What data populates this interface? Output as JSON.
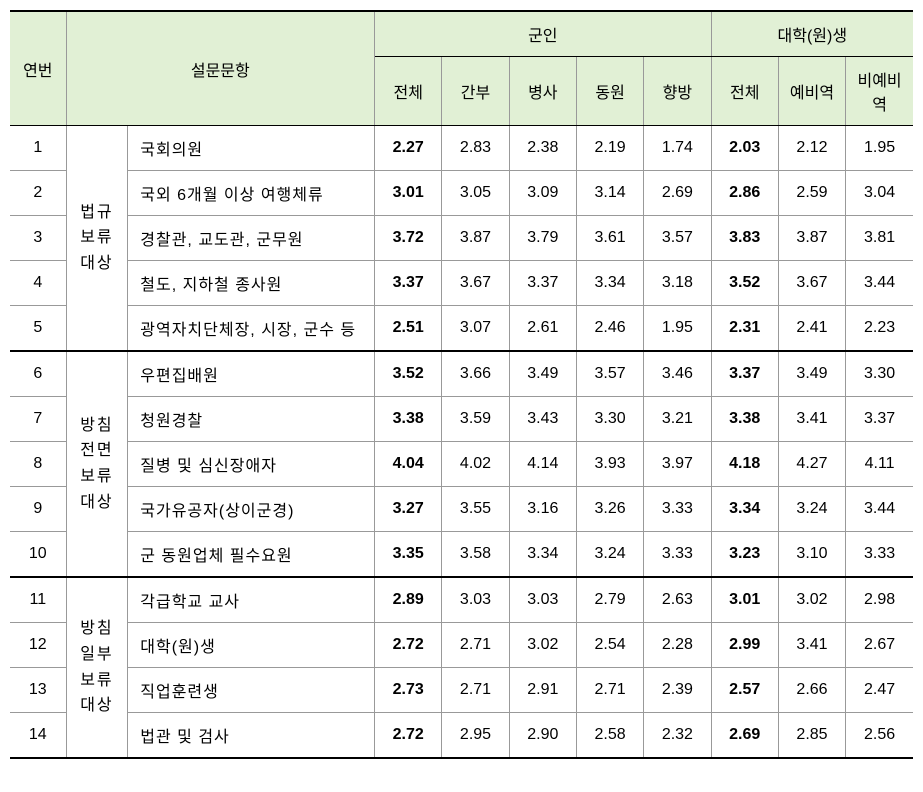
{
  "headers": {
    "col1": "연번",
    "col2": "설문문항",
    "group1": "군인",
    "group2": "대학(원)생",
    "sub1": "전체",
    "sub2": "간부",
    "sub3": "병사",
    "sub4": "동원",
    "sub5": "향방",
    "sub6": "전체",
    "sub7": "예비역",
    "sub8": "비예비역"
  },
  "categories": {
    "cat1": "법규\n보류\n대상",
    "cat2": "방침\n전면\n보류\n대상",
    "cat3": "방침\n일부\n보류\n대상"
  },
  "rows": [
    {
      "num": "1",
      "cat": 1,
      "catSpan": 5,
      "item": "국회의원",
      "v": [
        "2.27",
        "2.83",
        "2.38",
        "2.19",
        "1.74",
        "2.03",
        "2.12",
        "1.95"
      ]
    },
    {
      "num": "2",
      "cat": 1,
      "item": "국외 6개월 이상 여행체류",
      "v": [
        "3.01",
        "3.05",
        "3.09",
        "3.14",
        "2.69",
        "2.86",
        "2.59",
        "3.04"
      ]
    },
    {
      "num": "3",
      "cat": 1,
      "item": "경찰관, 교도관, 군무원",
      "v": [
        "3.72",
        "3.87",
        "3.79",
        "3.61",
        "3.57",
        "3.83",
        "3.87",
        "3.81"
      ]
    },
    {
      "num": "4",
      "cat": 1,
      "item": "철도, 지하철 종사원",
      "v": [
        "3.37",
        "3.67",
        "3.37",
        "3.34",
        "3.18",
        "3.52",
        "3.67",
        "3.44"
      ]
    },
    {
      "num": "5",
      "cat": 1,
      "item": "광역자치단체장, 시장, 군수 등",
      "v": [
        "2.51",
        "3.07",
        "2.61",
        "2.46",
        "1.95",
        "2.31",
        "2.41",
        "2.23"
      ],
      "groupEnd": true
    },
    {
      "num": "6",
      "cat": 2,
      "catSpan": 5,
      "item": "우편집배원",
      "v": [
        "3.52",
        "3.66",
        "3.49",
        "3.57",
        "3.46",
        "3.37",
        "3.49",
        "3.30"
      ]
    },
    {
      "num": "7",
      "cat": 2,
      "item": "청원경찰",
      "v": [
        "3.38",
        "3.59",
        "3.43",
        "3.30",
        "3.21",
        "3.38",
        "3.41",
        "3.37"
      ]
    },
    {
      "num": "8",
      "cat": 2,
      "item": "질병 및 심신장애자",
      "v": [
        "4.04",
        "4.02",
        "4.14",
        "3.93",
        "3.97",
        "4.18",
        "4.27",
        "4.11"
      ]
    },
    {
      "num": "9",
      "cat": 2,
      "item": "국가유공자(상이군경)",
      "v": [
        "3.27",
        "3.55",
        "3.16",
        "3.26",
        "3.33",
        "3.34",
        "3.24",
        "3.44"
      ]
    },
    {
      "num": "10",
      "cat": 2,
      "item": "군 동원업체 필수요원",
      "v": [
        "3.35",
        "3.58",
        "3.34",
        "3.24",
        "3.33",
        "3.23",
        "3.10",
        "3.33"
      ],
      "groupEnd": true
    },
    {
      "num": "11",
      "cat": 3,
      "catSpan": 4,
      "item": "각급학교 교사",
      "v": [
        "2.89",
        "3.03",
        "3.03",
        "2.79",
        "2.63",
        "3.01",
        "3.02",
        "2.98"
      ]
    },
    {
      "num": "12",
      "cat": 3,
      "item": "대학(원)생",
      "v": [
        "2.72",
        "2.71",
        "3.02",
        "2.54",
        "2.28",
        "2.99",
        "3.41",
        "2.67"
      ]
    },
    {
      "num": "13",
      "cat": 3,
      "item": "직업훈련생",
      "v": [
        "2.73",
        "2.71",
        "2.91",
        "2.71",
        "2.39",
        "2.57",
        "2.66",
        "2.47"
      ]
    },
    {
      "num": "14",
      "cat": 3,
      "item": "법관 및 검사",
      "v": [
        "2.72",
        "2.95",
        "2.90",
        "2.58",
        "2.32",
        "2.69",
        "2.85",
        "2.56"
      ],
      "groupEnd": true
    }
  ],
  "style": {
    "header_bg": "#e1f0d5",
    "border_color": "#999999",
    "strong_border": "#000000",
    "bold_cols": [
      0,
      5
    ]
  }
}
